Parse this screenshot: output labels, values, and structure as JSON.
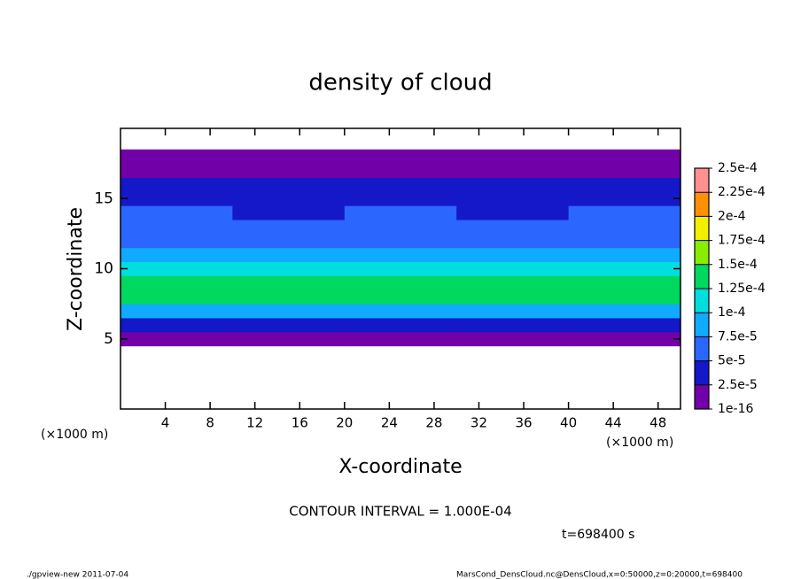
{
  "chart_data": {
    "type": "heatmap",
    "title": "density of cloud",
    "x_label": "X-coordinate",
    "y_label": "Z-coordinate",
    "x_unit_left": "(×1000 m)",
    "x_unit_right": "(×1000 m)",
    "contour_text": "CONTOUR INTERVAL = 1.000E-04",
    "time_text": "t=698400 s",
    "footer_left": "./gpview-new   2011-07-04",
    "footer_right": "MarsCond_DensCloud.nc@DensCloud,x=0:50000,z=0:20000,t=698400",
    "xlim": [
      0,
      50
    ],
    "xticks": [
      4,
      8,
      12,
      16,
      20,
      24,
      28,
      32,
      36,
      40,
      44,
      48
    ],
    "ylim": [
      0,
      20
    ],
    "yticks": [
      5,
      10,
      15
    ],
    "x_edges": [
      0,
      10,
      20,
      30,
      40,
      50
    ],
    "z_edges": [
      4.5,
      5.5,
      6.5,
      7.5,
      8.5,
      9.5,
      10.5,
      11.5,
      12.5,
      13.5,
      14.5,
      15.5,
      16.5,
      17.5,
      18.5
    ],
    "values": [
      [
        1.2e-05,
        1.5e-05,
        1e-05,
        1.4e-05,
        1.3e-05
      ],
      [
        3.5e-05,
        4e-05,
        3.2e-05,
        3.8e-05,
        3.6e-05
      ],
      [
        8.5e-05,
        9e-05,
        8e-05,
        9.5e-05,
        8.8e-05
      ],
      [
        0.00013,
        0.000135,
        0.000125,
        0.00013,
        0.000128
      ],
      [
        0.00014,
        0.00013,
        0.000132,
        0.000145,
        0.000135
      ],
      [
        0.000105,
        0.00011,
        0.000115,
        0.000108,
        0.000102
      ],
      [
        8e-05,
        8.5e-05,
        8.2e-05,
        7.8e-05,
        8.4e-05
      ],
      [
        6.8e-05,
        6.5e-05,
        7e-05,
        6.4e-05,
        6.9e-05
      ],
      [
        5.8e-05,
        5.5e-05,
        6e-05,
        5.6e-05,
        5.9e-05
      ],
      [
        5.2e-05,
        4.8e-05,
        5.3e-05,
        4.6e-05,
        5.1e-05
      ],
      [
        4.4e-05,
        4.2e-05,
        4.6e-05,
        4.1e-05,
        4.5e-05
      ],
      [
        3e-05,
        2.8e-05,
        3.2e-05,
        2.7e-05,
        3.1e-05
      ],
      [
        1.8e-05,
        1.6e-05,
        1.7e-05,
        1.5e-05,
        1.9e-05
      ],
      [
        5e-06,
        4e-06,
        3e-06,
        4e-06,
        6e-06
      ]
    ],
    "color_levels": [
      {
        "value": 1e-16,
        "label": "1e-16"
      },
      {
        "value": 2.5e-05,
        "label": "2.5e-5"
      },
      {
        "value": 5e-05,
        "label": "5e-5"
      },
      {
        "value": 7.5e-05,
        "label": "7.5e-5"
      },
      {
        "value": 0.0001,
        "label": "1e-4"
      },
      {
        "value": 0.000125,
        "label": "1.25e-4"
      },
      {
        "value": 0.00015,
        "label": "1.5e-4"
      },
      {
        "value": 0.000175,
        "label": "1.75e-4"
      },
      {
        "value": 0.0002,
        "label": "2e-4"
      },
      {
        "value": 0.000225,
        "label": "2.25e-4"
      },
      {
        "value": 0.00025,
        "label": "2.5e-4"
      }
    ],
    "colors": [
      "#7200a8",
      "#1418c8",
      "#2a66ff",
      "#10aaff",
      "#00dede",
      "#00d860",
      "#88ee00",
      "#f0f000",
      "#ff9000",
      "#ff9090"
    ]
  }
}
